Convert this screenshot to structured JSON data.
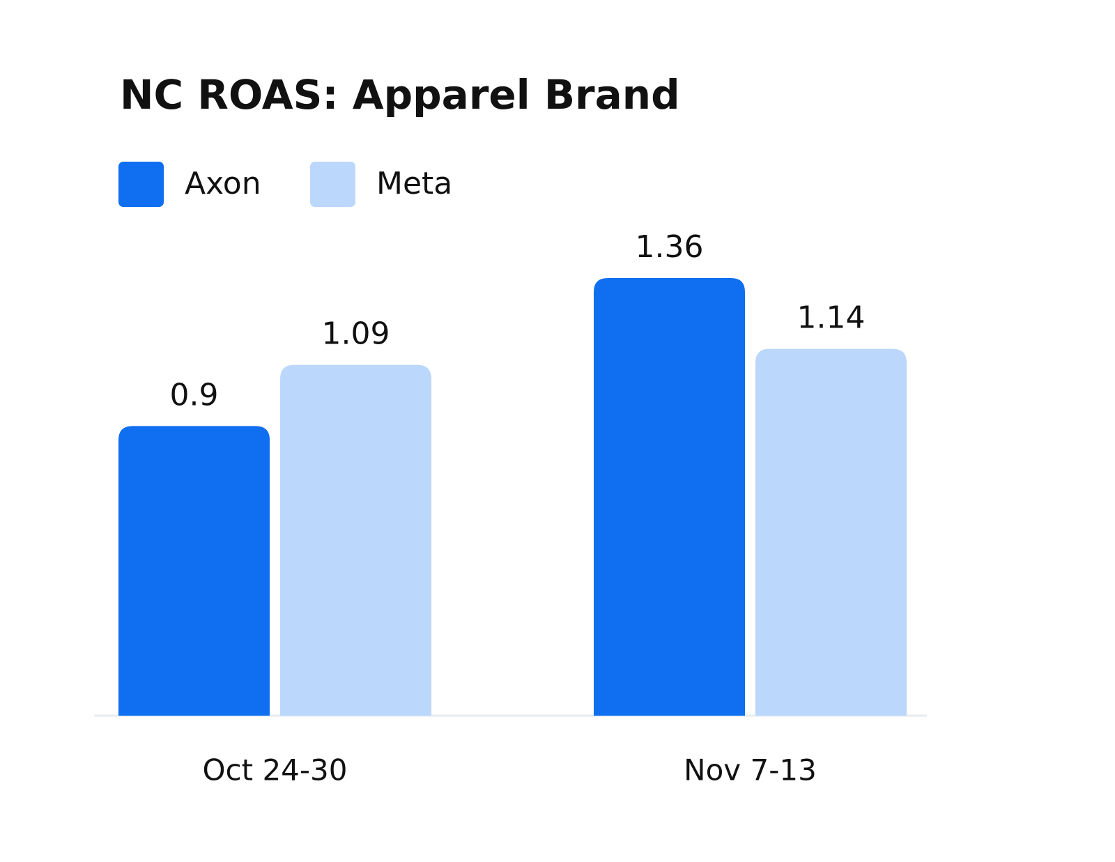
{
  "chart_data": {
    "type": "bar",
    "title": "NC ROAS: Apparel Brand",
    "categories": [
      "Oct 24-30",
      "Nov 7-13"
    ],
    "series": [
      {
        "name": "Axon",
        "color": "#0f6ff0",
        "values": [
          0.9,
          1.36
        ]
      },
      {
        "name": "Meta",
        "color": "#bcd7fc",
        "values": [
          1.09,
          1.14
        ]
      }
    ]
  }
}
